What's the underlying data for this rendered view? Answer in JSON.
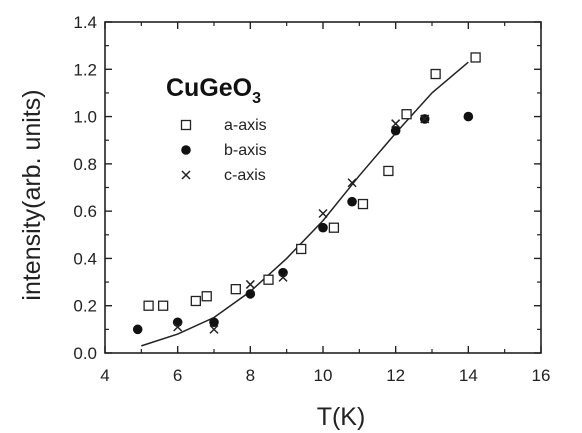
{
  "chart_data": {
    "type": "scatter",
    "xlabel": "T(K)",
    "ylabel": "intensity(arb. units)",
    "xlim": [
      4,
      16
    ],
    "ylim": [
      0.0,
      1.4
    ],
    "x_ticks": [
      "4",
      "6",
      "8",
      "10",
      "12",
      "14",
      "16"
    ],
    "y_ticks": [
      "0.0",
      "0.2",
      "0.4",
      "0.6",
      "0.8",
      "1.0",
      "1.2",
      "1.4"
    ],
    "grid": false,
    "legend_position": "upper-left",
    "annotation": {
      "main": "CuGeO",
      "subscript": "3"
    },
    "series": [
      {
        "name": "a-axis",
        "marker": "open-square",
        "points": [
          [
            5.2,
            0.2
          ],
          [
            5.6,
            0.2
          ],
          [
            6.5,
            0.22
          ],
          [
            6.8,
            0.24
          ],
          [
            7.6,
            0.27
          ],
          [
            8.5,
            0.31
          ],
          [
            9.4,
            0.44
          ],
          [
            10.3,
            0.53
          ],
          [
            11.1,
            0.63
          ],
          [
            11.8,
            0.77
          ],
          [
            12.3,
            1.01
          ],
          [
            13.1,
            1.18
          ],
          [
            14.2,
            1.25
          ]
        ]
      },
      {
        "name": "b-axis",
        "marker": "filled-circle",
        "points": [
          [
            4.9,
            0.1
          ],
          [
            6.0,
            0.13
          ],
          [
            7.0,
            0.13
          ],
          [
            8.0,
            0.25
          ],
          [
            8.9,
            0.34
          ],
          [
            10.0,
            0.53
          ],
          [
            10.8,
            0.64
          ],
          [
            12.0,
            0.94
          ],
          [
            12.8,
            0.99
          ],
          [
            14.0,
            1.0
          ]
        ]
      },
      {
        "name": "c-axis",
        "marker": "cross",
        "points": [
          [
            6.0,
            0.11
          ],
          [
            7.0,
            0.1
          ],
          [
            8.0,
            0.29
          ],
          [
            8.9,
            0.32
          ],
          [
            10.0,
            0.59
          ],
          [
            10.8,
            0.72
          ],
          [
            12.0,
            0.97
          ],
          [
            12.8,
            0.99
          ]
        ]
      }
    ],
    "fit_curve": [
      [
        5.0,
        0.03
      ],
      [
        6.0,
        0.08
      ],
      [
        7.0,
        0.15
      ],
      [
        8.0,
        0.26
      ],
      [
        9.0,
        0.4
      ],
      [
        10.0,
        0.56
      ],
      [
        11.0,
        0.75
      ],
      [
        12.0,
        0.93
      ],
      [
        13.0,
        1.1
      ],
      [
        14.0,
        1.23
      ]
    ]
  }
}
